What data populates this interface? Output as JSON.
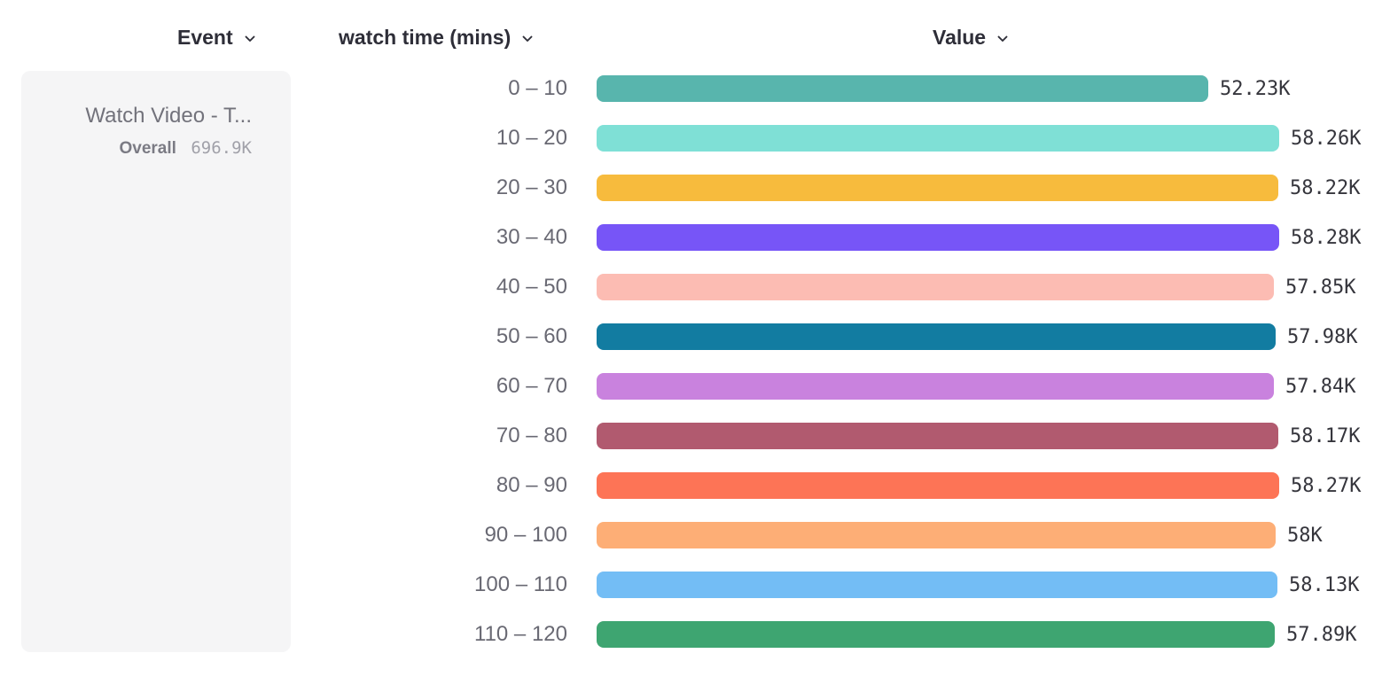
{
  "header": {
    "event_label": "Event",
    "breakdown_label": "watch time (mins)",
    "value_label": "Value"
  },
  "event_panel": {
    "title": "Watch Video - T...",
    "overall_label": "Overall",
    "overall_value": "696.9K"
  },
  "colors": {
    "header_text": "#2e2e38",
    "bucket_label_text": "#696973",
    "value_label_text": "#35353c",
    "card_background": "#f5f5f6"
  },
  "chart_data": {
    "type": "bar",
    "orientation": "horizontal",
    "title": "",
    "xlabel": "Value",
    "ylabel": "watch time (mins)",
    "legend_entry": "Watch Video - T... Overall 696.9K",
    "grid": false,
    "xlim": [
      0,
      58280
    ],
    "categories": [
      "0 – 10",
      "10 – 20",
      "20 – 30",
      "30 – 40",
      "40 – 50",
      "50 – 60",
      "60 – 70",
      "70 – 80",
      "80 – 90",
      "90 – 100",
      "100 – 110",
      "110 – 120"
    ],
    "values": [
      52230,
      58260,
      58220,
      58280,
      57850,
      57980,
      57840,
      58170,
      58270,
      58000,
      58130,
      57890
    ],
    "value_labels": [
      "52.23K",
      "58.26K",
      "58.22K",
      "58.28K",
      "57.85K",
      "57.98K",
      "57.84K",
      "58.17K",
      "58.27K",
      "58K",
      "58.13K",
      "57.89K"
    ],
    "colors": [
      "#58b5ad",
      "#7fe0d6",
      "#f7bb3d",
      "#7755f7",
      "#fcbcb3",
      "#127ca1",
      "#c982de",
      "#b15a6f",
      "#fd7456",
      "#fdae76",
      "#73bdf5",
      "#3ea571"
    ]
  }
}
